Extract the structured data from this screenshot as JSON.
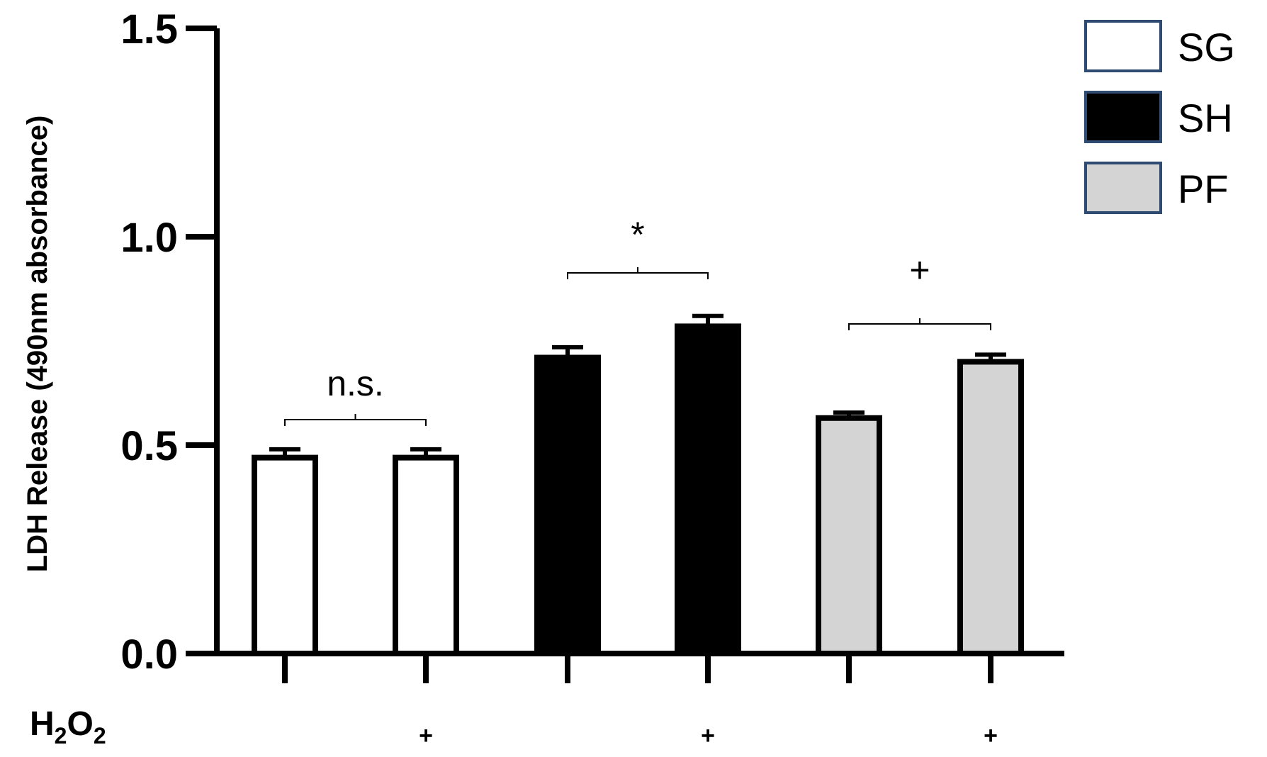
{
  "chart_data": {
    "type": "bar",
    "ylabel": "LDH Release (490nm absorbance)",
    "ylim": [
      0,
      1.5
    ],
    "yticks": [
      "0.0",
      "0.5",
      "1.0",
      "1.5"
    ],
    "y_tick_values": [
      0,
      0.5,
      1.0,
      1.5
    ],
    "grid": false,
    "legend_position": "top-right",
    "xlabel_row": {
      "label_main": "H",
      "label_sub1": "2",
      "label_mid": "O",
      "label_sub2": "2",
      "markers": [
        "",
        "+",
        "",
        "+",
        "",
        "+"
      ]
    },
    "series": [
      {
        "name": "SG",
        "color": "#ffffff",
        "values": [
          0.47,
          0.47
        ],
        "errors": [
          0.02,
          0.02
        ]
      },
      {
        "name": "SH",
        "color": "#000000",
        "values": [
          0.71,
          0.785
        ],
        "errors": [
          0.025,
          0.025
        ]
      },
      {
        "name": "PF",
        "color": "#d4d4d4",
        "values": [
          0.565,
          0.7
        ],
        "errors": [
          0.013,
          0.017
        ]
      }
    ],
    "annotations": [
      {
        "text": "n.s.",
        "between": [
          0,
          1
        ]
      },
      {
        "text": "*",
        "between": [
          2,
          3
        ]
      },
      {
        "text": "+",
        "between": [
          4,
          5
        ]
      }
    ]
  }
}
